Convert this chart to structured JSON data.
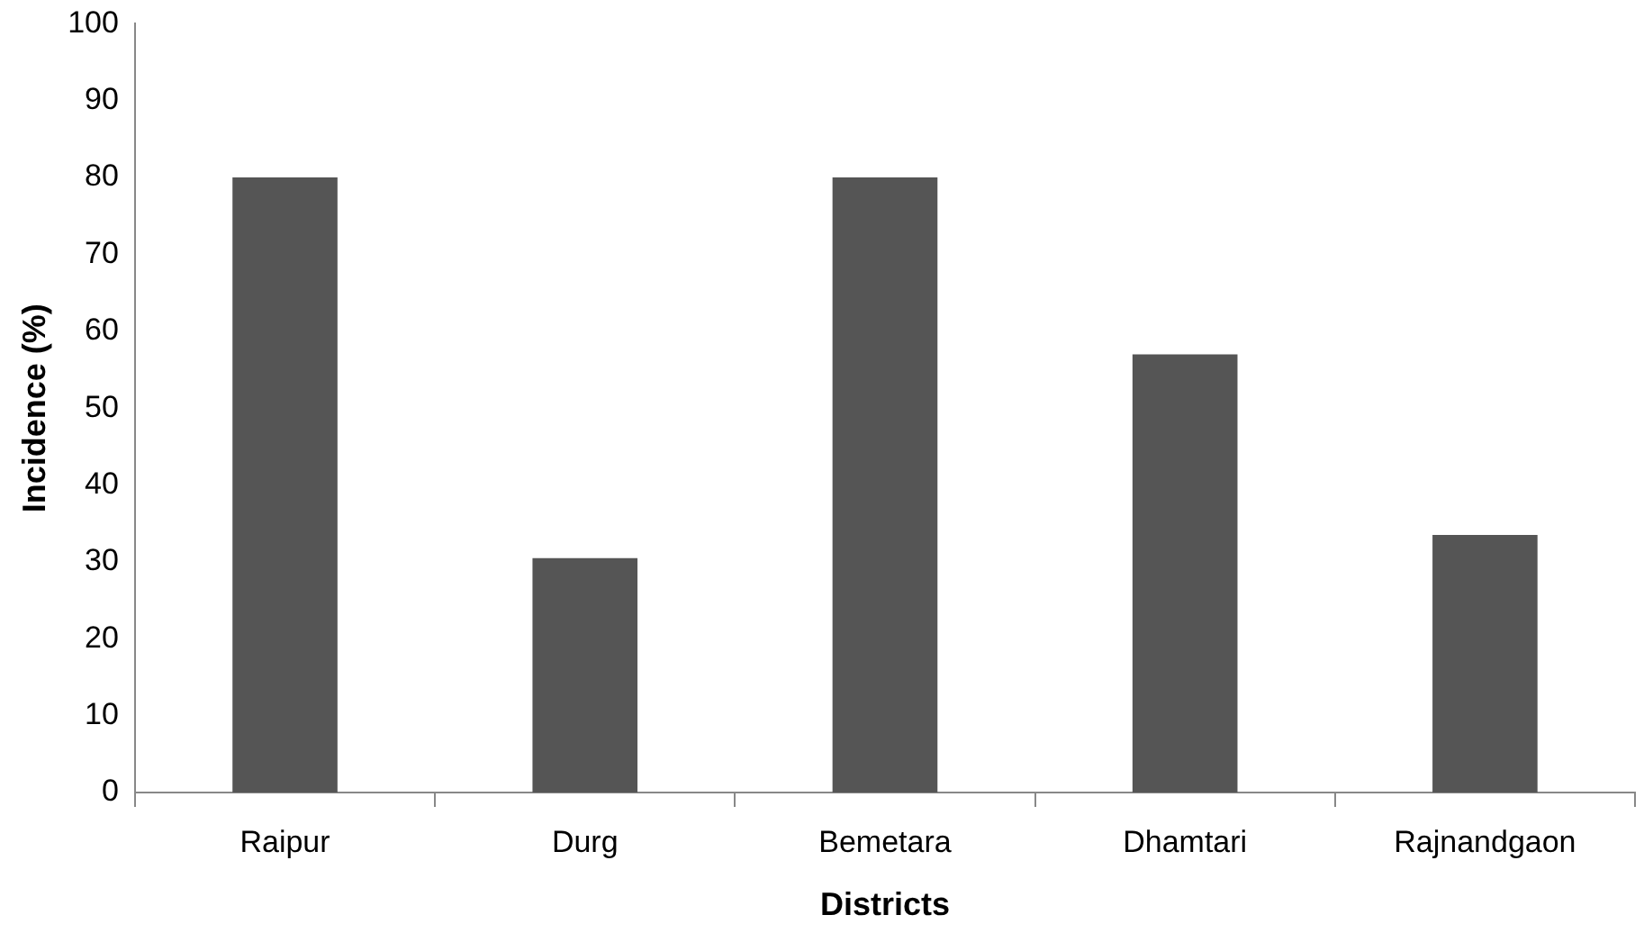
{
  "chart_data": {
    "type": "bar",
    "xlabel": "Districts",
    "ylabel": "Incidence (%)",
    "categories": [
      "Raipur",
      "Durg",
      "Bemetara",
      "Dhamtari",
      "Rajnandgaon"
    ],
    "values": [
      80,
      30.5,
      80,
      57,
      33.5
    ],
    "color": "#555555",
    "ylim": [
      0,
      100
    ],
    "yticks": [
      0,
      10,
      20,
      30,
      40,
      50,
      60,
      70,
      80,
      90,
      100
    ],
    "grid": false,
    "legend": false
  }
}
